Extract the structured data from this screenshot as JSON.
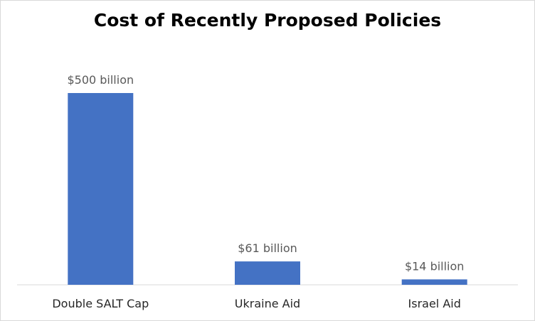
{
  "chart_data": {
    "type": "bar",
    "title": "Cost of Recently Proposed Policies",
    "xlabel": "",
    "ylabel": "",
    "categories": [
      "Double SALT Cap",
      "Ukraine Aid",
      "Israel Aid"
    ],
    "values": [
      500,
      61,
      14
    ],
    "data_labels": [
      "$500 billion",
      "$61 billion",
      "$14 billion"
    ],
    "unit": "billion USD",
    "ylim": [
      0,
      550
    ],
    "grid": false,
    "legend": "none",
    "colors": {
      "bar": "#4472c4",
      "axis": "#d9d9d9"
    }
  }
}
